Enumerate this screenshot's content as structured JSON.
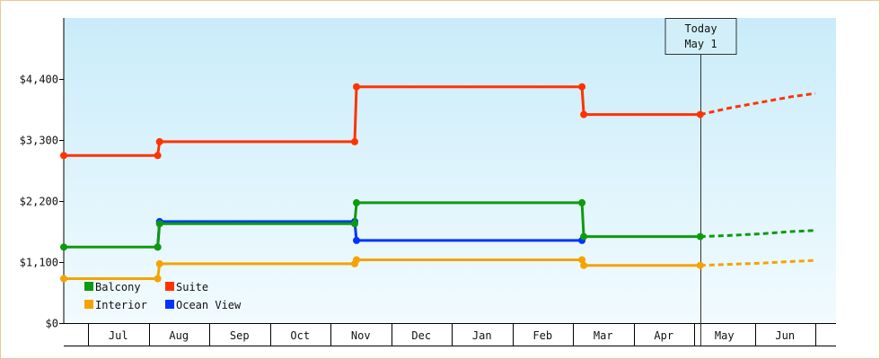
{
  "chart_data": {
    "type": "line",
    "title": "",
    "xlabel": "",
    "ylabel": "",
    "ylim": [
      0,
      5500
    ],
    "y_ticks": [
      0,
      1100,
      2200,
      3300,
      4400
    ],
    "y_tick_labels": [
      "$0",
      "$1,100",
      "$2,200",
      "$3,300",
      "$4,400"
    ],
    "x_tick_labels": [
      "Jul",
      "Aug",
      "Sep",
      "Oct",
      "Nov",
      "Dec",
      "Jan",
      "Feb",
      "Mar",
      "Apr",
      "May",
      "Jun"
    ],
    "x_months_range": [
      0,
      12.4
    ],
    "background_gradient": [
      "#c9ecfa",
      "#f2fbfe"
    ],
    "grid": false,
    "legend_placement": "bottom-left",
    "today": {
      "line1": "Today",
      "line2": "May 1",
      "x": 10.5
    },
    "series": [
      {
        "name": "Balcony",
        "color": "#0e9a0e",
        "x": [
          0.0,
          1.55,
          1.58,
          4.8,
          4.83,
          8.55,
          8.58,
          10.5
        ],
        "y": [
          1370,
          1370,
          1790,
          1790,
          2170,
          2170,
          1560,
          1560
        ],
        "forecast": {
          "x": [
            10.5,
            11.0,
            11.5,
            12.0,
            12.4
          ],
          "y": [
            1560,
            1580,
            1610,
            1650,
            1670
          ]
        }
      },
      {
        "name": "Suite",
        "color": "#ff3300",
        "x": [
          0.0,
          1.55,
          1.58,
          4.8,
          4.83,
          8.55,
          8.58,
          10.5
        ],
        "y": [
          3020,
          3020,
          3270,
          3270,
          4260,
          4260,
          3760,
          3760
        ],
        "forecast": {
          "x": [
            10.5,
            11.0,
            11.5,
            12.0,
            12.4
          ],
          "y": [
            3760,
            3880,
            3980,
            4080,
            4140
          ]
        }
      },
      {
        "name": "Interior",
        "color": "#f5a300",
        "x": [
          0.0,
          1.55,
          1.58,
          4.8,
          4.83,
          8.55,
          8.58,
          10.5
        ],
        "y": [
          800,
          800,
          1070,
          1070,
          1140,
          1140,
          1040,
          1040
        ],
        "forecast": {
          "x": [
            10.5,
            11.0,
            11.5,
            12.0,
            12.4
          ],
          "y": [
            1040,
            1060,
            1080,
            1110,
            1130
          ]
        }
      },
      {
        "name": "Ocean View",
        "color": "#0033ff",
        "x": [
          1.55,
          1.58,
          4.8,
          4.83,
          8.55
        ],
        "y": [
          1370,
          1830,
          1830,
          1490,
          1490
        ],
        "forecast": null
      }
    ],
    "legend": [
      {
        "name": "Balcony",
        "color": "#0e9a0e"
      },
      {
        "name": "Suite",
        "color": "#ff3300"
      },
      {
        "name": "Interior",
        "color": "#f5a300"
      },
      {
        "name": "Ocean View",
        "color": "#0033ff"
      }
    ]
  }
}
